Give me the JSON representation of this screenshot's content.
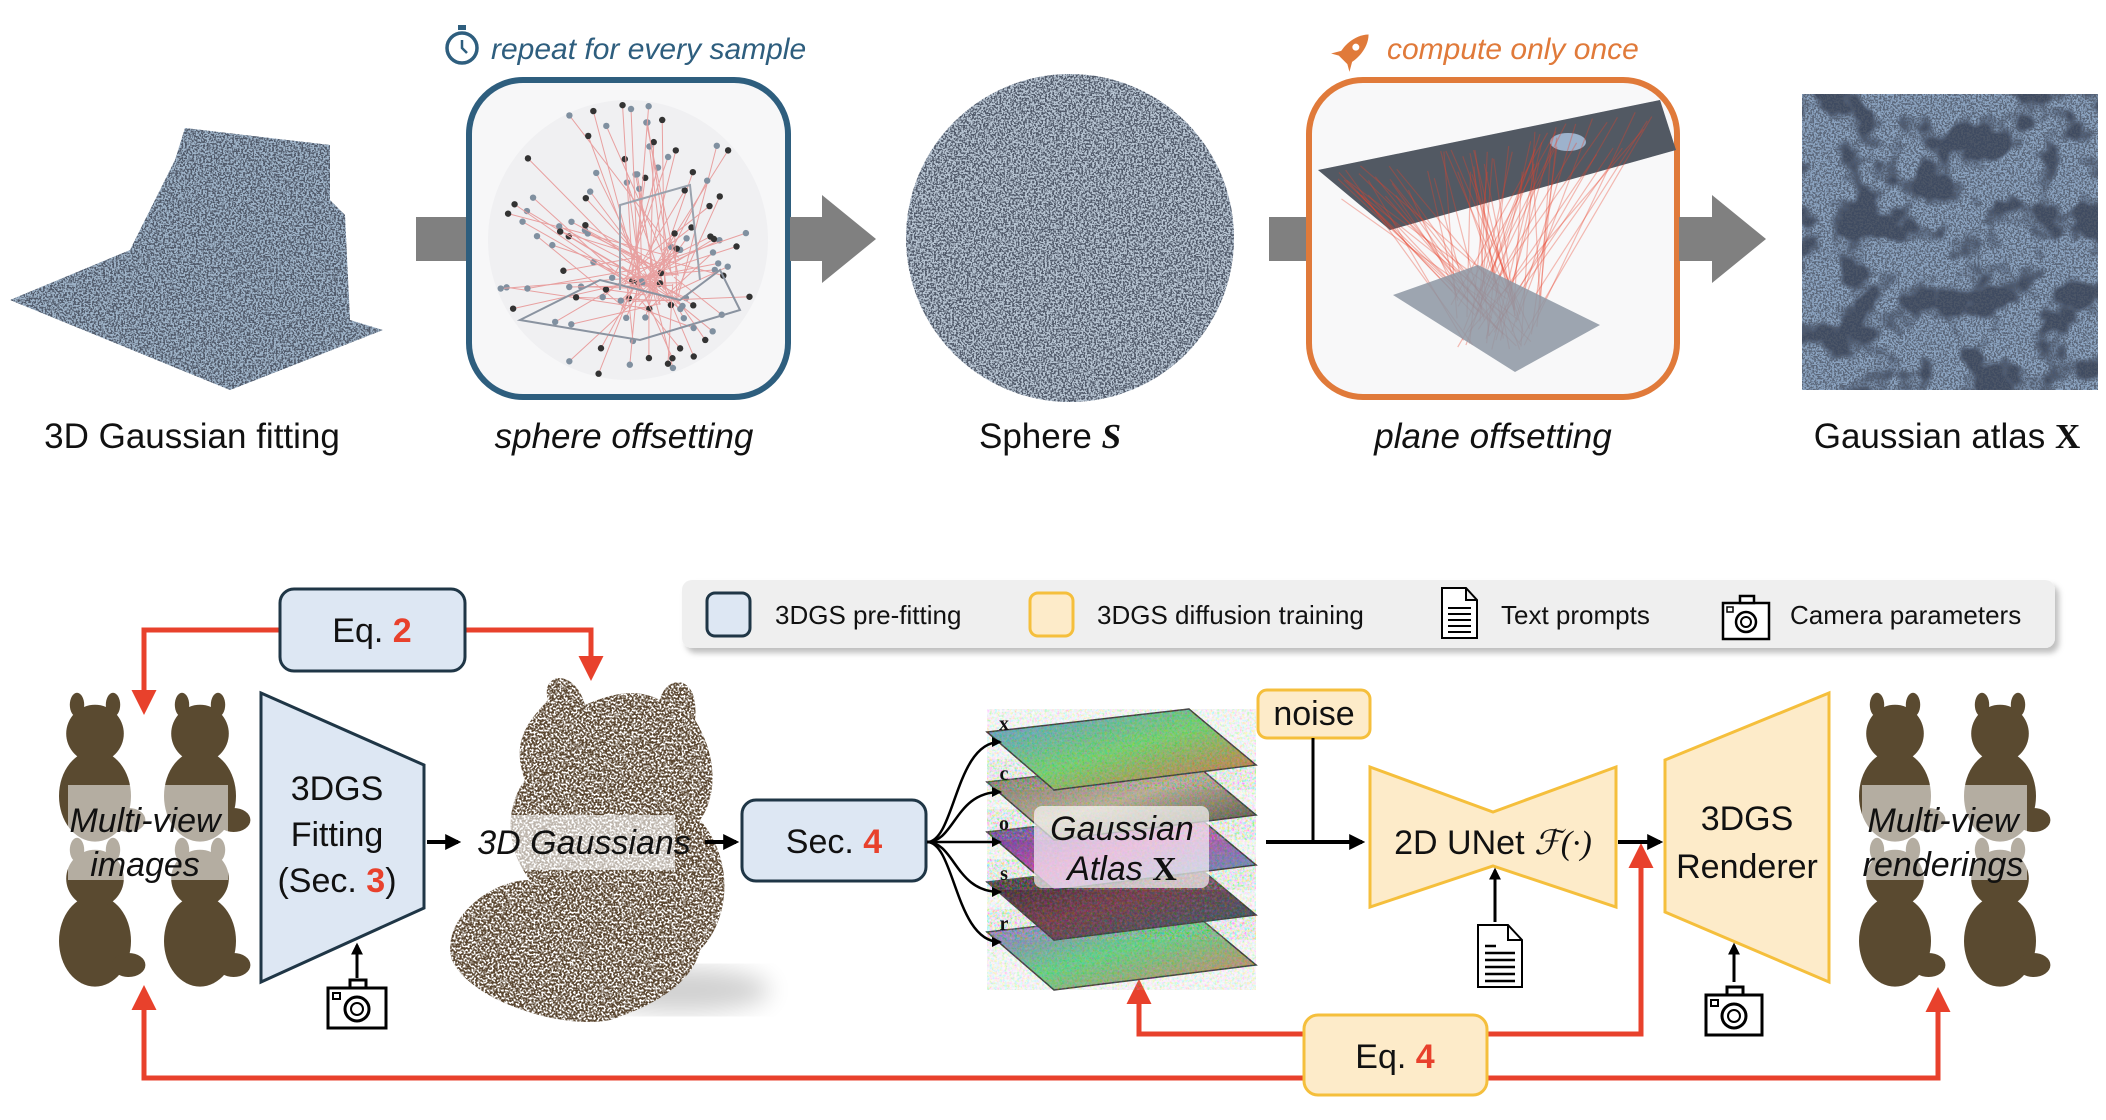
{
  "top_row": {
    "repeat_note": "repeat for every sample",
    "once_note": "compute only once",
    "stages": [
      {
        "label": "3D Gaussian fitting"
      },
      {
        "label": "sphere offsetting"
      },
      {
        "label": "Sphere ",
        "symbol": "S"
      },
      {
        "label": "plane offsetting"
      },
      {
        "label": "Gaussian atlas ",
        "symbol": "X"
      }
    ]
  },
  "legend": {
    "items": [
      {
        "label": "3DGS pre-fitting",
        "icon": "blue-square"
      },
      {
        "label": "3DGS diffusion training",
        "icon": "yellow-square"
      },
      {
        "label": "Text prompts",
        "icon": "document-icon"
      },
      {
        "label": "Camera parameters",
        "icon": "camera-icon"
      }
    ]
  },
  "pipeline": {
    "eq2": {
      "prefix": "Eq. ",
      "num": "2"
    },
    "eq4": {
      "prefix": "Eq. ",
      "num": "4"
    },
    "multiview_images": [
      "Multi-view",
      "images"
    ],
    "fitting": {
      "line1": "3DGS",
      "line2": "Fitting",
      "line3_prefix": "(Sec. ",
      "line3_num": "3",
      "line3_suffix": ")"
    },
    "gaussians": "3D Gaussians",
    "sec4": {
      "prefix": "Sec. ",
      "num": "4"
    },
    "attributes": [
      "x",
      "c",
      "o",
      "s",
      "r"
    ],
    "atlas": {
      "line1": "Gaussian",
      "line2": "Atlas ",
      "symbol": "X"
    },
    "noise": "noise",
    "unet": {
      "label": "2D UNet ",
      "symbol": "ℱ(·)"
    },
    "renderer": {
      "line1": "3DGS",
      "line2": "Renderer"
    },
    "multiview_renderings": [
      "Multi-view",
      "renderings"
    ]
  },
  "colors": {
    "prefit_fill": "#dde7f3",
    "prefit_border": "#1f3646",
    "diffusion_fill": "#fdebc9",
    "diffusion_border": "#f5bf3c",
    "loss_red": "#e8412c",
    "repeat_blue": "#2e5e7e",
    "once_orange": "#e07a3a",
    "arrow_gray": "#808080"
  }
}
